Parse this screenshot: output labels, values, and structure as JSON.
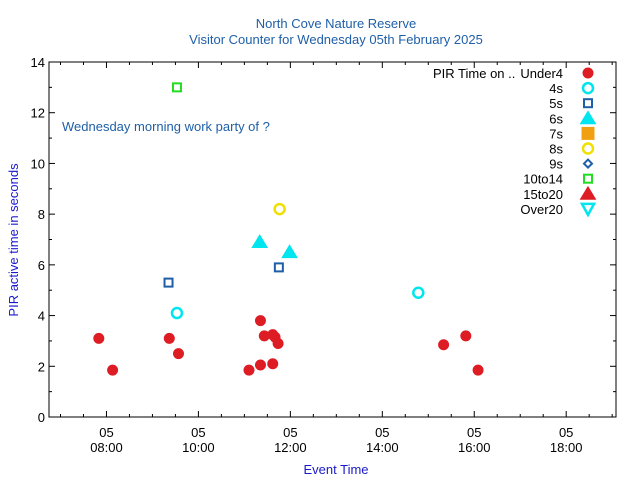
{
  "chart_data": {
    "type": "scatter",
    "title": "North Cove Nature Reserve",
    "subtitle": "Visitor Counter for Wednesday 05th February 2025",
    "xlabel": "Event Time",
    "ylabel": "PIR active time in seconds",
    "annotation": "Wednesday morning work party of ?",
    "legend_title": "PIR Time on ..",
    "legend_position": "top-right",
    "grid": false,
    "xlim": [
      "2025-02-05 06:45",
      "2025-02-05 19:05"
    ],
    "ylim": [
      0,
      14
    ],
    "yticks": [
      0,
      2,
      4,
      6,
      8,
      10,
      12,
      14
    ],
    "xticks": [
      {
        "x": "2025-02-05 08:00",
        "line1": "05",
        "line2": "08:00"
      },
      {
        "x": "2025-02-05 10:00",
        "line1": "05",
        "line2": "10:00"
      },
      {
        "x": "2025-02-05 12:00",
        "line1": "05",
        "line2": "12:00"
      },
      {
        "x": "2025-02-05 14:00",
        "line1": "05",
        "line2": "14:00"
      },
      {
        "x": "2025-02-05 16:00",
        "line1": "05",
        "line2": "16:00"
      },
      {
        "x": "2025-02-05 18:00",
        "line1": "05",
        "line2": "18:00"
      }
    ],
    "series": [
      {
        "name": "Under4",
        "marker": "circle-filled",
        "color": "#dd1c24",
        "points": [
          {
            "x": "2025-02-05 07:50",
            "y": 3.1
          },
          {
            "x": "2025-02-05 08:08",
            "y": 1.85
          },
          {
            "x": "2025-02-05 09:22",
            "y": 3.1
          },
          {
            "x": "2025-02-05 09:34",
            "y": 2.5
          },
          {
            "x": "2025-02-05 11:06",
            "y": 1.85
          },
          {
            "x": "2025-02-05 11:21",
            "y": 3.8
          },
          {
            "x": "2025-02-05 11:26",
            "y": 3.2
          },
          {
            "x": "2025-02-05 11:21",
            "y": 2.05
          },
          {
            "x": "2025-02-05 11:37",
            "y": 3.25
          },
          {
            "x": "2025-02-05 11:40",
            "y": 3.15
          },
          {
            "x": "2025-02-05 11:37",
            "y": 2.1
          },
          {
            "x": "2025-02-05 11:44",
            "y": 2.9
          },
          {
            "x": "2025-02-05 15:20",
            "y": 2.85
          },
          {
            "x": "2025-02-05 15:49",
            "y": 3.2
          },
          {
            "x": "2025-02-05 16:05",
            "y": 1.85
          }
        ]
      },
      {
        "name": "4s",
        "marker": "circle-open",
        "color": "#00e5ee",
        "points": [
          {
            "x": "2025-02-05 09:32",
            "y": 4.1
          },
          {
            "x": "2025-02-05 14:47",
            "y": 4.9
          }
        ]
      },
      {
        "name": "5s",
        "marker": "square-open",
        "color": "#1f5fa8",
        "points": [
          {
            "x": "2025-02-05 09:21",
            "y": 5.3
          },
          {
            "x": "2025-02-05 11:45",
            "y": 5.9
          }
        ]
      },
      {
        "name": "6s",
        "marker": "triangle-up-filled",
        "color": "#00e5ee",
        "points": [
          {
            "x": "2025-02-05 11:20",
            "y": 6.9
          },
          {
            "x": "2025-02-05 11:59",
            "y": 6.5
          }
        ]
      },
      {
        "name": "7s",
        "marker": "square-filled",
        "color": "#f0a010",
        "points": []
      },
      {
        "name": "8s",
        "marker": "circle-open",
        "color": "#f0e000",
        "points": [
          {
            "x": "2025-02-05 11:46",
            "y": 8.2
          }
        ]
      },
      {
        "name": "9s",
        "marker": "diamond-open",
        "color": "#1f5fa8",
        "points": []
      },
      {
        "name": "10to14",
        "marker": "square-open",
        "color": "#22dd22",
        "points": [
          {
            "x": "2025-02-05 09:32",
            "y": 13.0
          }
        ]
      },
      {
        "name": "15to20",
        "marker": "triangle-up-filled",
        "color": "#dd1c24",
        "points": []
      },
      {
        "name": "Over20",
        "marker": "triangle-down-open",
        "color": "#00e5ee",
        "points": []
      }
    ]
  }
}
